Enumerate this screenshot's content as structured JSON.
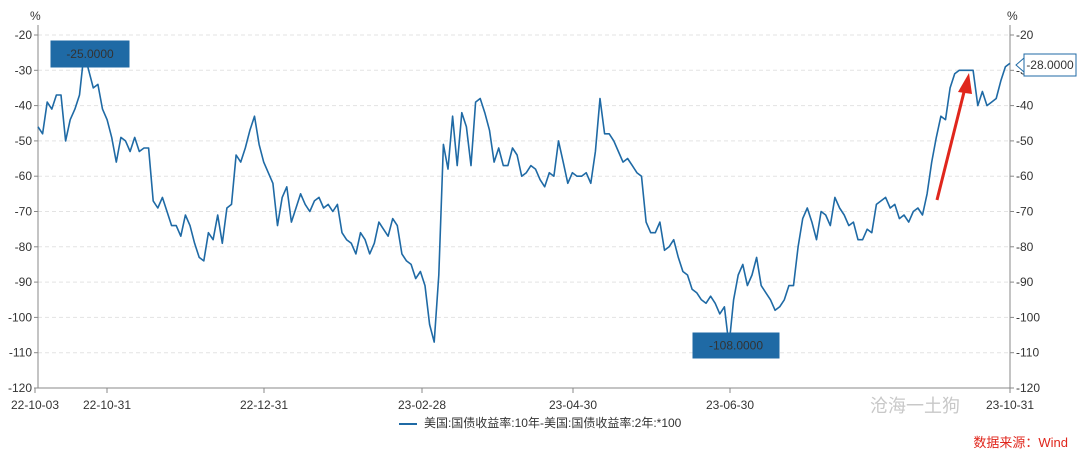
{
  "chart_data": {
    "type": "line",
    "series": [
      {
        "name": "美国:国债收益率:10年-美国:国债收益率:2年:*100",
        "color": "#1f6aa5",
        "values": [
          -46,
          -48,
          -39,
          -41,
          -37,
          -37,
          -50,
          -44,
          -41,
          -37,
          -25,
          -30,
          -35,
          -34,
          -41,
          -44,
          -49,
          -56,
          -49,
          -50,
          -53,
          -49,
          -53,
          -52,
          -52,
          -67,
          -69,
          -66,
          -70,
          -74,
          -74,
          -77,
          -71,
          -74,
          -79,
          -83,
          -84,
          -76,
          -78,
          -71,
          -79,
          -69,
          -68,
          -54,
          -56,
          -52,
          -47,
          -43,
          -51,
          -56,
          -59,
          -62,
          -74,
          -66,
          -63,
          -73,
          -69,
          -65,
          -68,
          -70,
          -67,
          -66,
          -69,
          -68,
          -70,
          -68,
          -76,
          -78,
          -79,
          -82,
          -76,
          -78,
          -82,
          -79,
          -73,
          -75,
          -77,
          -72,
          -74,
          -82,
          -84,
          -85,
          -89,
          -87,
          -91,
          -102,
          -107,
          -88,
          -51,
          -58,
          -43,
          -57,
          -42,
          -46,
          -57,
          -39,
          -38,
          -42,
          -47,
          -56,
          -52,
          -57,
          -57,
          -52,
          -54,
          -60,
          -59,
          -57,
          -58,
          -61,
          -63,
          -59,
          -60,
          -50,
          -56,
          -62,
          -59,
          -60,
          -60,
          -59,
          -62,
          -53,
          -38,
          -48,
          -48,
          -50,
          -53,
          -56,
          -55,
          -57,
          -59,
          -60,
          -73,
          -76,
          -76,
          -73,
          -81,
          -80,
          -78,
          -83,
          -87,
          -88,
          -92,
          -93,
          -95,
          -96,
          -94,
          -96,
          -99,
          -97,
          -108,
          -95,
          -88,
          -85,
          -91,
          -88,
          -83,
          -91,
          -93,
          -95,
          -98,
          -97,
          -95,
          -91,
          -91,
          -80,
          -72,
          -69,
          -73,
          -78,
          -70,
          -71,
          -74,
          -66,
          -69,
          -71,
          -74,
          -73,
          -78,
          -78,
          -75,
          -76,
          -68,
          -67,
          -66,
          -69,
          -68,
          -72,
          -71,
          -73,
          -70,
          -69,
          -71,
          -65,
          -56,
          -49,
          -43,
          -44,
          -35,
          -31,
          -30,
          -30,
          -30,
          -30,
          -40,
          -36,
          -40,
          -39,
          -38,
          -33,
          -29,
          -28
        ],
        "start_label": "-25.0000",
        "end_label": "-28.0000",
        "min_label": "-108.0000"
      }
    ],
    "x_ticks": [
      "22-10-03",
      "22-10-31",
      "22-12-31",
      "23-02-28",
      "23-04-30",
      "23-06-30",
      "23-10-31"
    ],
    "ylim": [
      -120,
      -20
    ],
    "y_ticks": [
      -20,
      -30,
      -40,
      -50,
      -60,
      -70,
      -80,
      -90,
      -100,
      -110,
      -120
    ],
    "ylabel_left": "%",
    "ylabel_right": "%",
    "grid": true,
    "legend_position": "bottom"
  },
  "source_note": "数据来源：Wind",
  "watermark": "沧海一土狗"
}
